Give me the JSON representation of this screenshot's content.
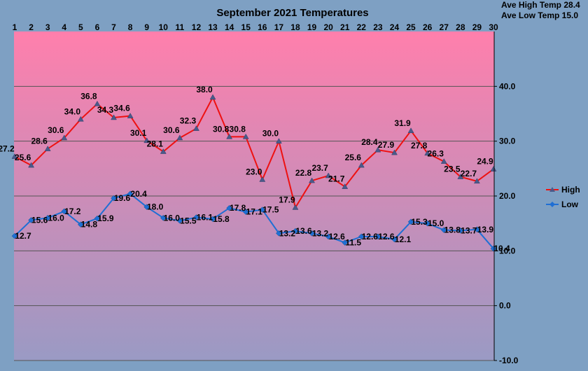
{
  "chart_data": {
    "type": "line",
    "title": "September 2021 Temperatures",
    "stats": [
      "Ave High Temp 28.4",
      "Ave Low Temp 15.0"
    ],
    "x": [
      1,
      2,
      3,
      4,
      5,
      6,
      7,
      8,
      9,
      10,
      11,
      12,
      13,
      14,
      15,
      16,
      17,
      18,
      19,
      20,
      21,
      22,
      23,
      24,
      25,
      26,
      27,
      28,
      29,
      30
    ],
    "x_tick_labels": [
      "1",
      "2",
      "3",
      "4",
      "5",
      "6",
      "7",
      "8",
      "9",
      "10",
      "11",
      "12",
      "13",
      "14",
      "15",
      "16",
      "17",
      "18",
      "19",
      "20",
      "21",
      "22",
      "23",
      "24",
      "25",
      "26",
      "27",
      "28",
      "29",
      "30"
    ],
    "xaxis_position": "top",
    "ylim": [
      -10,
      50
    ],
    "y_tick_labels": [
      {
        "value": 40,
        "label": "40.0"
      },
      {
        "value": 30,
        "label": "30.0"
      },
      {
        "value": 20,
        "label": "20.0"
      },
      {
        "value": 10,
        "label": "10.0"
      },
      {
        "value": 0,
        "label": "0.0"
      },
      {
        "value": -10,
        "label": "-10.0"
      }
    ],
    "yaxis_position": "right",
    "grid": true,
    "legend": "right",
    "plot_gradient": [
      "#ff7fac",
      "#9a9ac4"
    ],
    "series": [
      {
        "name": "High",
        "color": "#ee1111",
        "marker": "triangle",
        "values": [
          27.2,
          25.6,
          28.6,
          30.6,
          34.0,
          36.8,
          34.3,
          34.6,
          30.1,
          28.1,
          30.6,
          32.3,
          38.0,
          30.8,
          30.8,
          23.0,
          30.0,
          17.9,
          22.8,
          23.7,
          21.7,
          25.6,
          28.4,
          27.9,
          31.9,
          27.8,
          26.3,
          23.5,
          22.7,
          24.9
        ],
        "labels": [
          "27.2",
          "25.6",
          "28.6",
          "30.6",
          "34.0",
          "36.8",
          "34.3",
          "34.6",
          "30.1",
          "28.1",
          "30.6",
          "32.3",
          "38.0",
          "30.8",
          "30.8",
          "23.0",
          "30.0",
          "17.9",
          "22.8",
          "23.7",
          "21.7",
          "25.6",
          "28.4",
          "27.9",
          "31.9",
          "27.8",
          "26.3",
          "23.5",
          "22.7",
          "24.9"
        ]
      },
      {
        "name": "Low",
        "color": "#1f6fd4",
        "marker": "diamond",
        "values": [
          12.7,
          15.6,
          16.0,
          17.2,
          14.8,
          15.9,
          19.6,
          20.4,
          18.0,
          16.0,
          15.5,
          16.1,
          15.8,
          17.8,
          17.1,
          17.5,
          13.2,
          13.6,
          13.2,
          12.6,
          11.5,
          12.6,
          12.6,
          12.1,
          15.3,
          15.0,
          13.8,
          13.7,
          13.9,
          10.4
        ],
        "labels": [
          "12.7",
          "15.6",
          "16.0",
          "17.2",
          "14.8",
          "15.9",
          "19.6",
          "20.4",
          "18.0",
          "16.0",
          "15.5",
          "16.1",
          "15.8",
          "17.8",
          "17.1",
          "17.5",
          "13.2",
          "13.6",
          "13.2",
          "12.6",
          "11.5",
          "12.6",
          "12.6",
          "12.1",
          "15.3",
          "15.0",
          "13.8",
          "13.7",
          "13.9",
          "10.4"
        ]
      }
    ]
  }
}
